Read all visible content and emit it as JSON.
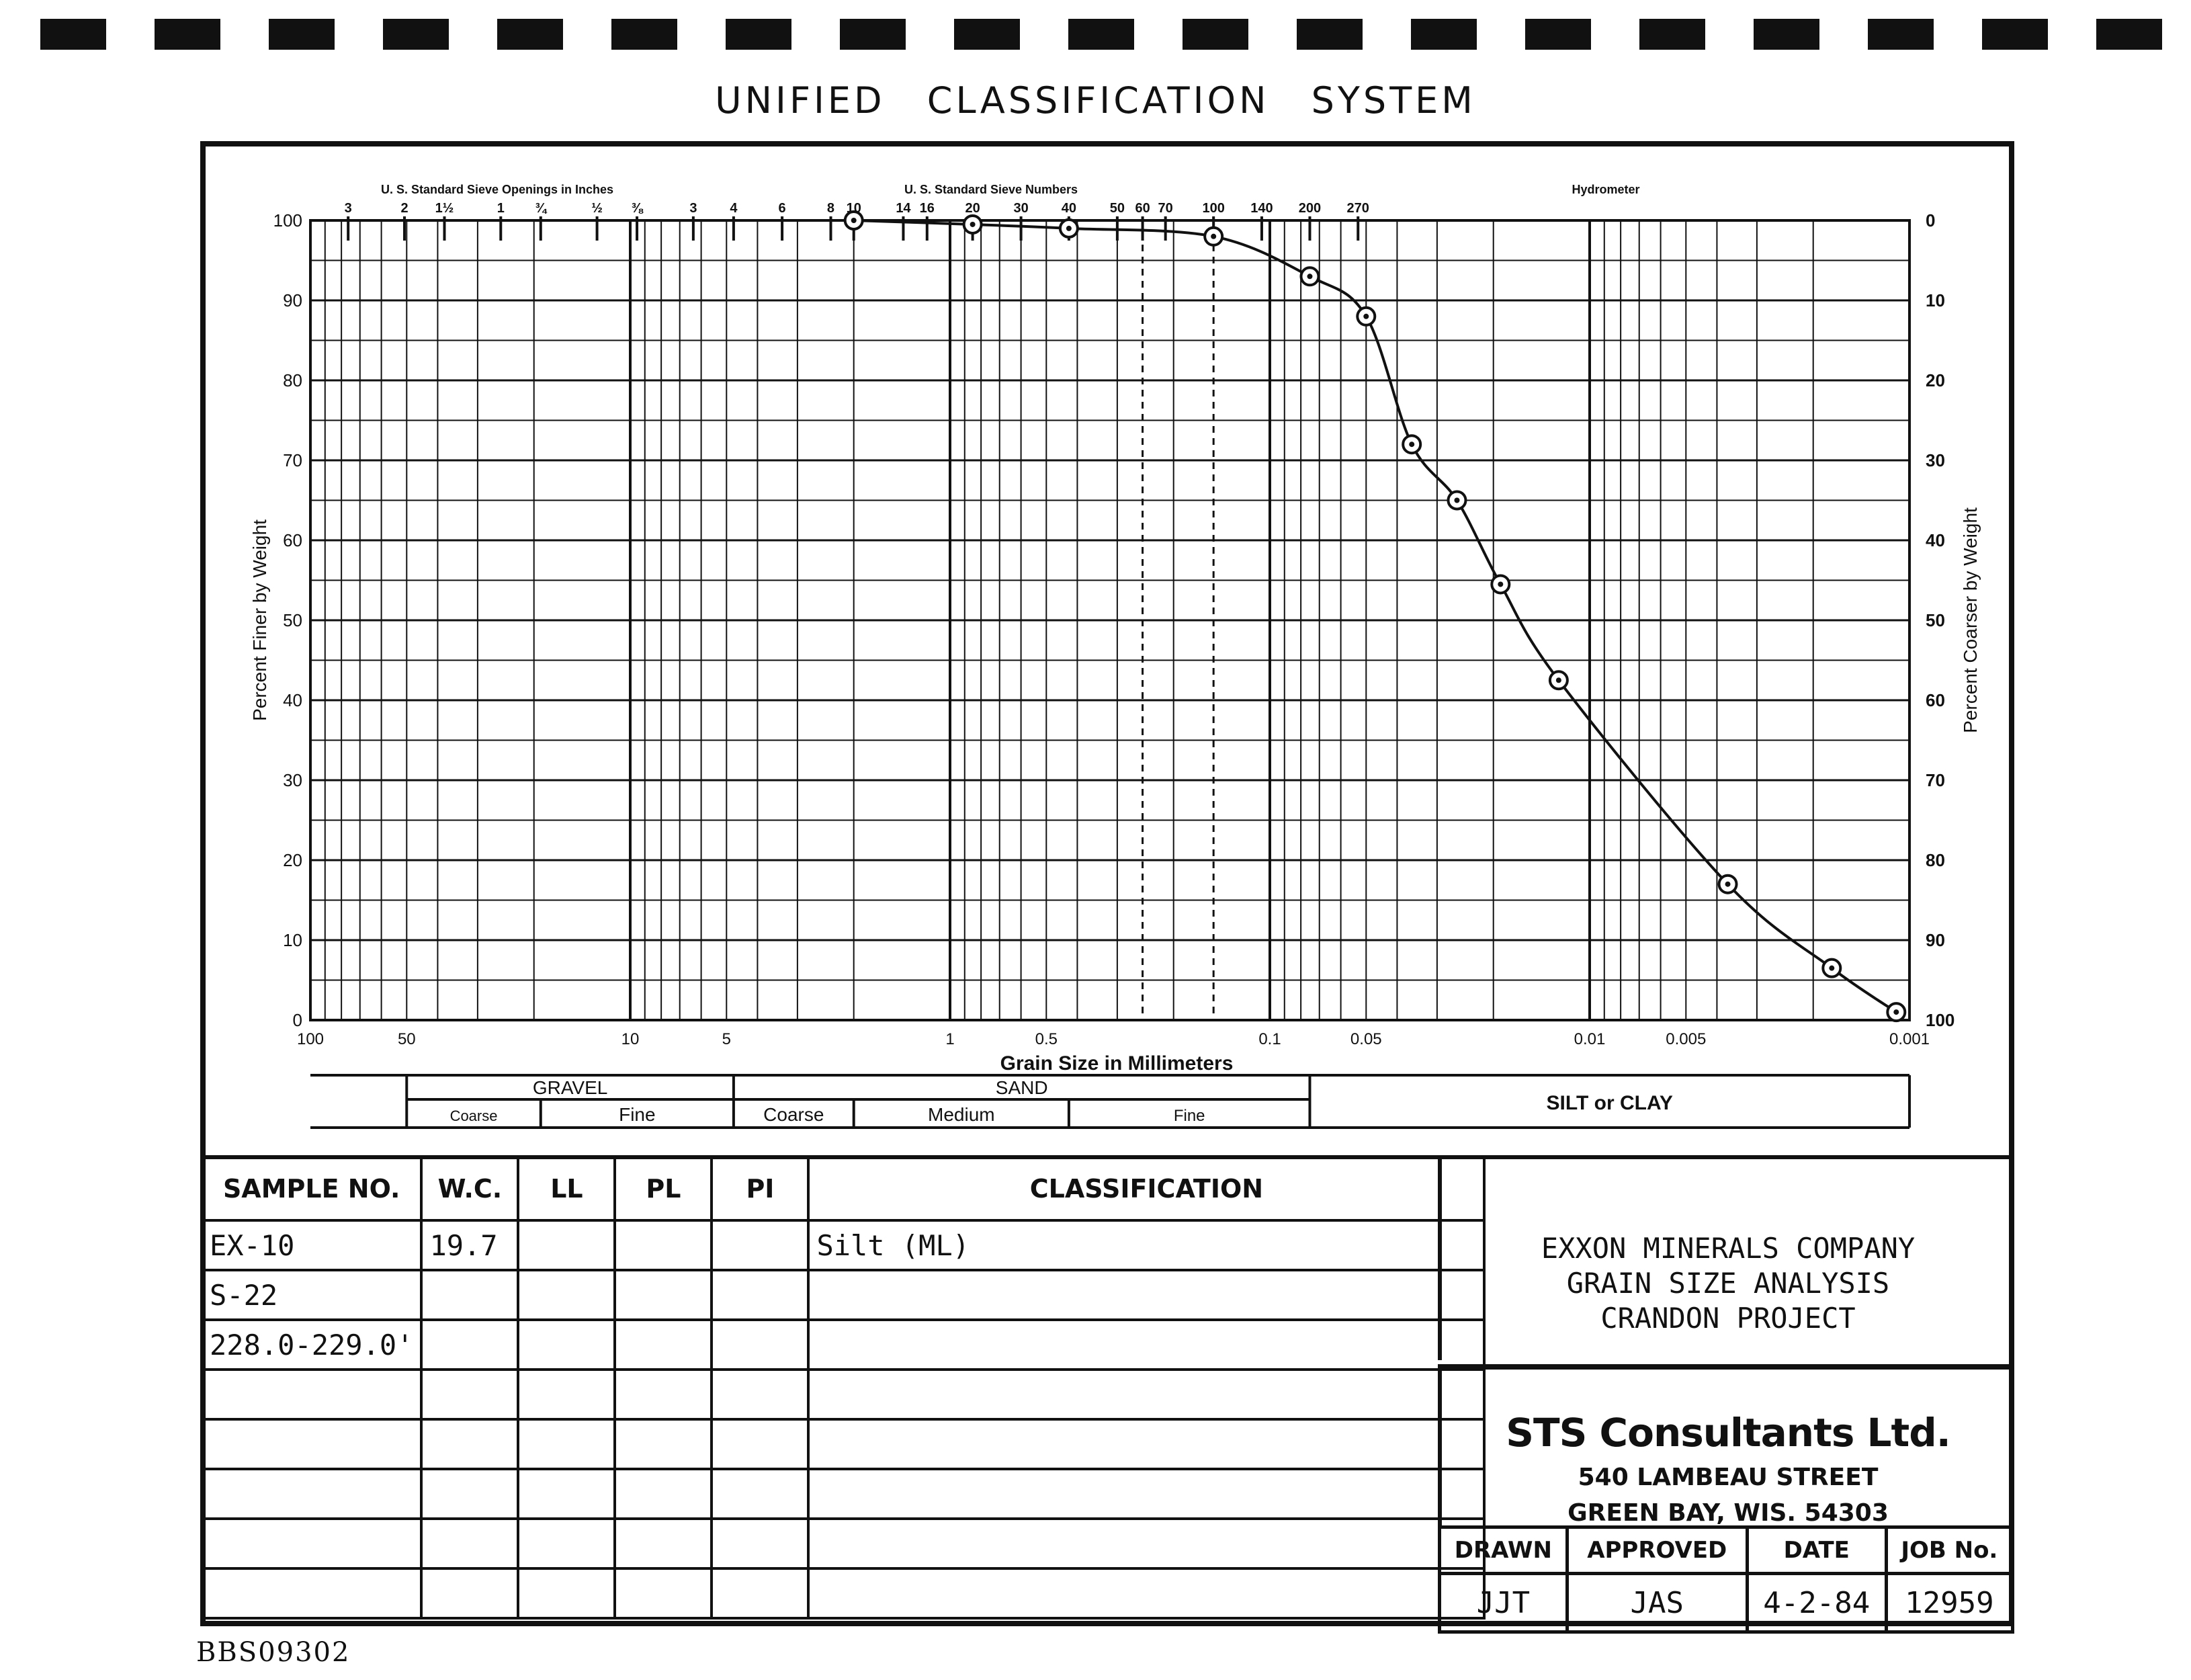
{
  "title": "UNIFIED CLASSIFICATION SYSTEM",
  "chart_data": {
    "type": "line",
    "xlabel": "Grain Size in Millimeters",
    "ylabel": "Percent Finer by Weight",
    "ylabel_right": "Percent Coarser by Weight",
    "x_scale": "log",
    "x_direction": "decreasing",
    "xlim": [
      100,
      0.001
    ],
    "ylim": [
      0,
      100
    ],
    "x_ticks": [
      {
        "value": 100,
        "label": "100"
      },
      {
        "value": 50,
        "label": "50"
      },
      {
        "value": 10,
        "label": "10"
      },
      {
        "value": 5,
        "label": "5"
      },
      {
        "value": 1,
        "label": "1"
      },
      {
        "value": 0.5,
        "label": "0.5"
      },
      {
        "value": 0.1,
        "label": "0.1"
      },
      {
        "value": 0.05,
        "label": "0.05"
      },
      {
        "value": 0.01,
        "label": "0.01"
      },
      {
        "value": 0.005,
        "label": "0.005"
      },
      {
        "value": 0.001,
        "label": "0.001"
      }
    ],
    "y_ticks": [
      "0",
      "10",
      "20",
      "30",
      "40",
      "50",
      "60",
      "70",
      "80",
      "90",
      "100"
    ],
    "y_ticks_right": [
      "100",
      "90",
      "80",
      "70",
      "60",
      "50",
      "40",
      "30",
      "20",
      "10",
      "0"
    ],
    "top_scales": {
      "inches_label": "U. S. Standard Sieve Openings in Inches",
      "inches": [
        {
          "size": 76.2,
          "label": "3"
        },
        {
          "size": 50.8,
          "label": "2"
        },
        {
          "size": 38.1,
          "label": "1½"
        },
        {
          "size": 25.4,
          "label": "1"
        },
        {
          "size": 19.05,
          "label": "¾"
        },
        {
          "size": 12.7,
          "label": "½"
        },
        {
          "size": 9.525,
          "label": "⅜"
        }
      ],
      "numbers_label": "U. S. Standard Sieve Numbers",
      "numbers": [
        {
          "size": 6.35,
          "label": "3"
        },
        {
          "size": 4.75,
          "label": "4"
        },
        {
          "size": 3.35,
          "label": "6"
        },
        {
          "size": 2.36,
          "label": "8"
        },
        {
          "size": 2.0,
          "label": "10"
        },
        {
          "size": 1.4,
          "label": "14"
        },
        {
          "size": 1.18,
          "label": "16"
        },
        {
          "size": 0.85,
          "label": "20"
        },
        {
          "size": 0.6,
          "label": "30"
        },
        {
          "size": 0.425,
          "label": "40"
        },
        {
          "size": 0.3,
          "label": "50"
        },
        {
          "size": 0.25,
          "label": "60"
        },
        {
          "size": 0.212,
          "label": "70"
        },
        {
          "size": 0.15,
          "label": "100"
        },
        {
          "size": 0.106,
          "label": "140"
        },
        {
          "size": 0.075,
          "label": "200"
        },
        {
          "size": 0.053,
          "label": "270"
        }
      ],
      "hydrometer_label": "Hydrometer"
    },
    "series": [
      {
        "points": [
          {
            "x": 2.0,
            "y": 100
          },
          {
            "x": 0.85,
            "y": 99.5
          },
          {
            "x": 0.425,
            "y": 99
          },
          {
            "x": 0.15,
            "y": 98
          },
          {
            "x": 0.075,
            "y": 93
          },
          {
            "x": 0.05,
            "y": 88
          },
          {
            "x": 0.036,
            "y": 72
          },
          {
            "x": 0.026,
            "y": 65
          },
          {
            "x": 0.019,
            "y": 54.5
          },
          {
            "x": 0.0125,
            "y": 42.5
          },
          {
            "x": 0.0037,
            "y": 17
          },
          {
            "x": 0.00175,
            "y": 6.5
          },
          {
            "x": 0.0011,
            "y": 1
          }
        ]
      }
    ],
    "dashed_verticals": [
      0.25,
      0.15
    ],
    "classification_bar": {
      "groups": [
        {
          "name": "GRAVEL",
          "subs": [
            "Coarse",
            "Fine"
          ]
        },
        {
          "name": "SAND",
          "subs": [
            "Coarse",
            "Medium",
            "Fine"
          ]
        },
        {
          "name": "SILT or CLAY",
          "subs": []
        }
      ]
    }
  },
  "table": {
    "headers": [
      "SAMPLE NO.",
      "W.C.",
      "LL",
      "PL",
      "PI",
      "CLASSIFICATION"
    ],
    "rows": [
      [
        "EX-10",
        "19.7",
        "",
        "",
        "",
        "Silt (ML)"
      ],
      [
        "S-22",
        "",
        "",
        "",
        "",
        ""
      ],
      [
        "228.0-229.0'",
        "",
        "",
        "",
        "",
        ""
      ],
      [
        "",
        "",
        "",
        "",
        "",
        ""
      ],
      [
        "",
        "",
        "",
        "",
        "",
        ""
      ],
      [
        "",
        "",
        "",
        "",
        "",
        ""
      ],
      [
        "",
        "",
        "",
        "",
        "",
        ""
      ],
      [
        "",
        "",
        "",
        "",
        "",
        ""
      ]
    ]
  },
  "project": {
    "line1": "EXXON MINERALS COMPANY",
    "line2": "GRAIN SIZE ANALYSIS",
    "line3": "CRANDON PROJECT"
  },
  "firm": {
    "name": "STS Consultants Ltd.",
    "street": "540 LAMBEAU STREET",
    "city": "GREEN BAY, WIS. 54303"
  },
  "signoff": {
    "headers": [
      "DRAWN",
      "APPROVED",
      "DATE",
      "JOB No."
    ],
    "values": [
      "JJT",
      "JAS",
      "4-2-84",
      "12959"
    ]
  },
  "doc_id": "BBS09302"
}
